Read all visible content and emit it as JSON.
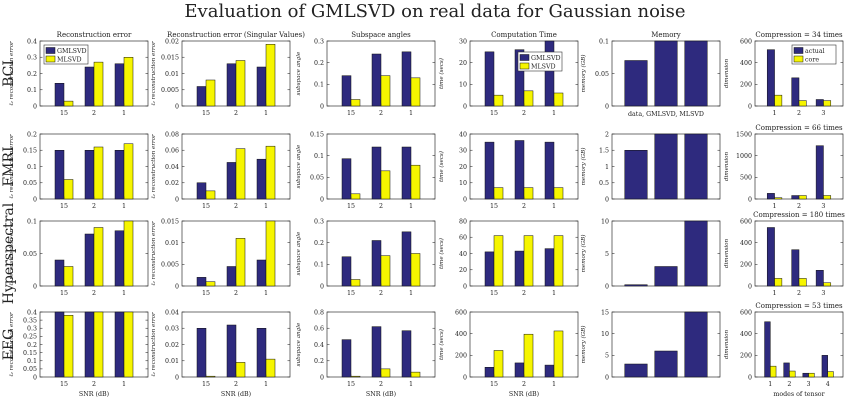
{
  "figure": {
    "title": "Evaluation of GMLSVD on real data for Gaussian noise",
    "colors": {
      "gmlsvd": "#2e2a7e",
      "mlsvd": "#f6f500",
      "actual": "#2e2a7e",
      "core": "#f6f500"
    }
  },
  "columns": [
    {
      "title": "Reconstruction error",
      "ylabel": "ℓ₂ reconstruction error",
      "xlabel": "SNR (dB)"
    },
    {
      "title": "Reconstruction error (Singular Values)",
      "ylabel": "ℓ₂ reconstruction error",
      "xlabel": "SNR (dB)"
    },
    {
      "title": "Subspace angles",
      "ylabel": "subspace angle",
      "xlabel": "SNR (dB)"
    },
    {
      "title": "Computation Time",
      "ylabel": "time (secs)",
      "xlabel": "SNR (dB)"
    },
    {
      "title": "Memory",
      "ylabel": "memory (GB)",
      "xlabel": ""
    },
    {
      "title": "",
      "ylabel": "dimension",
      "xlabel": "modes of tensor"
    }
  ],
  "rows": [
    "BCI",
    "FMRI",
    "Hyperspectral",
    "EEG"
  ],
  "legends": {
    "error": [
      "GMLSVD",
      "MLSVD"
    ],
    "time": [
      "GMLSVD",
      "MLSVD"
    ],
    "memory_note": "data, GMLSVD, MLSVD",
    "compression": [
      "actual",
      "core"
    ]
  },
  "chart_data": [
    {
      "id": "bci-err",
      "type": "bar",
      "categories": [
        "15",
        "2",
        "1"
      ],
      "ylim": [
        0,
        0.4
      ],
      "yticks": [
        0,
        0.1,
        0.2,
        0.3,
        0.4
      ],
      "series": [
        {
          "name": "GMLSVD",
          "values": [
            0.14,
            0.24,
            0.26
          ]
        },
        {
          "name": "MLSVD",
          "values": [
            0.03,
            0.27,
            0.3
          ]
        }
      ]
    },
    {
      "id": "bci-sv",
      "type": "bar",
      "categories": [
        "15",
        "2",
        "1"
      ],
      "ylim": [
        0,
        0.02
      ],
      "yticks": [
        0,
        0.005,
        0.01,
        0.015,
        0.02
      ],
      "series": [
        {
          "name": "GMLSVD",
          "values": [
            0.006,
            0.013,
            0.012
          ]
        },
        {
          "name": "MLSVD",
          "values": [
            0.008,
            0.014,
            0.019
          ]
        }
      ]
    },
    {
      "id": "bci-ang",
      "type": "bar",
      "categories": [
        "15",
        "2",
        "1"
      ],
      "ylim": [
        0,
        0.3
      ],
      "yticks": [
        0,
        0.1,
        0.2,
        0.3
      ],
      "series": [
        {
          "name": "GMLSVD",
          "values": [
            0.14,
            0.24,
            0.25
          ]
        },
        {
          "name": "MLSVD",
          "values": [
            0.03,
            0.14,
            0.13
          ]
        }
      ]
    },
    {
      "id": "bci-time",
      "type": "bar",
      "categories": [
        "15",
        "2",
        "1"
      ],
      "ylim": [
        0,
        30
      ],
      "yticks": [
        0,
        10,
        20,
        30
      ],
      "series": [
        {
          "name": "GMLSVD",
          "values": [
            25,
            26,
            30
          ]
        },
        {
          "name": "MLSVD",
          "values": [
            5,
            7,
            6
          ]
        }
      ]
    },
    {
      "id": "bci-mem",
      "type": "bar",
      "categories": [
        "data",
        "GMLSVD",
        "MLSVD"
      ],
      "ylim": [
        0,
        0.1
      ],
      "yticks": [
        0,
        0.05,
        0.1
      ],
      "series": [
        {
          "name": "memory",
          "values": [
            0.07,
            0.1,
            0.1
          ]
        }
      ]
    },
    {
      "id": "bci-comp",
      "type": "bar",
      "title": "Compression = 34 times",
      "categories": [
        "1",
        "2",
        "3"
      ],
      "ylim": [
        0,
        600
      ],
      "yticks": [
        0,
        200,
        400,
        600
      ],
      "series": [
        {
          "name": "actual",
          "values": [
            520,
            260,
            60
          ]
        },
        {
          "name": "core",
          "values": [
            100,
            50,
            50
          ]
        }
      ]
    },
    {
      "id": "fmri-err",
      "type": "bar",
      "categories": [
        "15",
        "2",
        "1"
      ],
      "ylim": [
        0,
        0.2
      ],
      "yticks": [
        0,
        0.05,
        0.1,
        0.15,
        0.2
      ],
      "series": [
        {
          "name": "GMLSVD",
          "values": [
            0.15,
            0.15,
            0.15
          ]
        },
        {
          "name": "MLSVD",
          "values": [
            0.06,
            0.16,
            0.17
          ]
        }
      ]
    },
    {
      "id": "fmri-sv",
      "type": "bar",
      "categories": [
        "15",
        "2",
        "1"
      ],
      "ylim": [
        0,
        0.08
      ],
      "yticks": [
        0,
        0.02,
        0.04,
        0.06,
        0.08
      ],
      "series": [
        {
          "name": "GMLSVD",
          "values": [
            0.02,
            0.045,
            0.049
          ]
        },
        {
          "name": "MLSVD",
          "values": [
            0.01,
            0.062,
            0.065
          ]
        }
      ]
    },
    {
      "id": "fmri-ang",
      "type": "bar",
      "categories": [
        "15",
        "2",
        "1"
      ],
      "ylim": [
        0,
        0.15
      ],
      "yticks": [
        0,
        0.05,
        0.1,
        0.15
      ],
      "series": [
        {
          "name": "GMLSVD",
          "values": [
            0.093,
            0.12,
            0.12
          ]
        },
        {
          "name": "MLSVD",
          "values": [
            0.012,
            0.065,
            0.078
          ]
        }
      ]
    },
    {
      "id": "fmri-time",
      "type": "bar",
      "categories": [
        "15",
        "2",
        "1"
      ],
      "ylim": [
        0,
        40
      ],
      "yticks": [
        0,
        10,
        20,
        30,
        40
      ],
      "series": [
        {
          "name": "GMLSVD",
          "values": [
            35,
            36,
            35
          ]
        },
        {
          "name": "MLSVD",
          "values": [
            7,
            7,
            7
          ]
        }
      ]
    },
    {
      "id": "fmri-mem",
      "type": "bar",
      "categories": [
        "data",
        "GMLSVD",
        "MLSVD"
      ],
      "ylim": [
        0,
        2
      ],
      "yticks": [
        0,
        0.5,
        1,
        1.5,
        2
      ],
      "series": [
        {
          "name": "memory",
          "values": [
            1.5,
            2,
            2
          ]
        }
      ]
    },
    {
      "id": "fmri-comp",
      "type": "bar",
      "title": "Compression = 66 times",
      "categories": [
        "1",
        "2",
        "3"
      ],
      "ylim": [
        0,
        1500
      ],
      "yticks": [
        0,
        500,
        1000,
        1500
      ],
      "series": [
        {
          "name": "actual",
          "values": [
            130,
            80,
            1230
          ]
        },
        {
          "name": "core",
          "values": [
            30,
            80,
            80
          ]
        }
      ]
    },
    {
      "id": "hyper-err",
      "type": "bar",
      "categories": [
        "15",
        "2",
        "1"
      ],
      "ylim": [
        0,
        0.1
      ],
      "yticks": [
        0,
        0.05,
        0.1
      ],
      "series": [
        {
          "name": "GMLSVD",
          "values": [
            0.04,
            0.08,
            0.085
          ]
        },
        {
          "name": "MLSVD",
          "values": [
            0.03,
            0.09,
            0.1
          ]
        }
      ]
    },
    {
      "id": "hyper-sv",
      "type": "bar",
      "categories": [
        "15",
        "2",
        "1"
      ],
      "ylim": [
        0,
        0.015
      ],
      "yticks": [
        0,
        0.005,
        0.01,
        0.015
      ],
      "series": [
        {
          "name": "GMLSVD",
          "values": [
            0.002,
            0.0045,
            0.006
          ]
        },
        {
          "name": "MLSVD",
          "values": [
            0.001,
            0.011,
            0.015
          ]
        }
      ]
    },
    {
      "id": "hyper-ang",
      "type": "bar",
      "categories": [
        "15",
        "2",
        "1"
      ],
      "ylim": [
        0,
        0.3
      ],
      "yticks": [
        0,
        0.1,
        0.2,
        0.3
      ],
      "series": [
        {
          "name": "GMLSVD",
          "values": [
            0.135,
            0.21,
            0.25
          ]
        },
        {
          "name": "MLSVD",
          "values": [
            0.03,
            0.14,
            0.15
          ]
        }
      ]
    },
    {
      "id": "hyper-time",
      "type": "bar",
      "categories": [
        "15",
        "2",
        "1"
      ],
      "ylim": [
        0,
        80
      ],
      "yticks": [
        0,
        20,
        40,
        60,
        80
      ],
      "series": [
        {
          "name": "GMLSVD",
          "values": [
            42,
            43,
            46
          ]
        },
        {
          "name": "MLSVD",
          "values": [
            62,
            62,
            62
          ]
        }
      ]
    },
    {
      "id": "hyper-mem",
      "type": "bar",
      "categories": [
        "data",
        "GMLSVD",
        "MLSVD"
      ],
      "ylim": [
        0,
        10
      ],
      "yticks": [
        0,
        5,
        10
      ],
      "series": [
        {
          "name": "memory",
          "values": [
            0.2,
            3,
            10
          ]
        }
      ]
    },
    {
      "id": "hyper-comp",
      "type": "bar",
      "title": "Compression = 180 times",
      "categories": [
        "1",
        "2",
        "3"
      ],
      "ylim": [
        0,
        600
      ],
      "yticks": [
        0,
        200,
        400,
        600
      ],
      "series": [
        {
          "name": "actual",
          "values": [
            540,
            335,
            145
          ]
        },
        {
          "name": "core",
          "values": [
            70,
            70,
            30
          ]
        }
      ]
    },
    {
      "id": "eeg-err",
      "type": "bar",
      "categories": [
        "15",
        "2",
        "1"
      ],
      "ylim": [
        0,
        0.4
      ],
      "yticks": [
        0,
        0.05,
        0.1,
        0.15,
        0.2,
        0.25,
        0.3,
        0.35,
        0.4
      ],
      "series": [
        {
          "name": "GMLSVD",
          "values": [
            0.4,
            0.4,
            0.4
          ]
        },
        {
          "name": "MLSVD",
          "values": [
            0.38,
            0.4,
            0.4
          ]
        }
      ]
    },
    {
      "id": "eeg-sv",
      "type": "bar",
      "categories": [
        "15",
        "2",
        "1"
      ],
      "ylim": [
        0,
        0.04
      ],
      "yticks": [
        0,
        0.01,
        0.02,
        0.03,
        0.04
      ],
      "series": [
        {
          "name": "GMLSVD",
          "values": [
            0.03,
            0.032,
            0.03
          ]
        },
        {
          "name": "MLSVD",
          "values": [
            0.0005,
            0.009,
            0.011
          ]
        }
      ]
    },
    {
      "id": "eeg-ang",
      "type": "bar",
      "categories": [
        "15",
        "2",
        "1"
      ],
      "ylim": [
        0,
        0.8
      ],
      "yticks": [
        0,
        0.2,
        0.4,
        0.6,
        0.8
      ],
      "series": [
        {
          "name": "GMLSVD",
          "values": [
            0.46,
            0.62,
            0.57
          ]
        },
        {
          "name": "MLSVD",
          "values": [
            0.01,
            0.1,
            0.06
          ]
        }
      ]
    },
    {
      "id": "eeg-time",
      "type": "bar",
      "categories": [
        "15",
        "2",
        "1"
      ],
      "ylim": [
        0,
        600
      ],
      "yticks": [
        0,
        200,
        400,
        600
      ],
      "series": [
        {
          "name": "GMLSVD",
          "values": [
            90,
            130,
            110
          ]
        },
        {
          "name": "MLSVD",
          "values": [
            245,
            395,
            425
          ]
        }
      ]
    },
    {
      "id": "eeg-mem",
      "type": "bar",
      "categories": [
        "data",
        "GMLSVD",
        "MLSVD"
      ],
      "ylim": [
        0,
        15
      ],
      "yticks": [
        0,
        5,
        10,
        15
      ],
      "series": [
        {
          "name": "memory",
          "values": [
            3,
            6,
            15
          ]
        }
      ]
    },
    {
      "id": "eeg-comp",
      "type": "bar",
      "title": "Compression = 53 times",
      "categories": [
        "1",
        "2",
        "3",
        "4"
      ],
      "ylim": [
        0,
        600
      ],
      "yticks": [
        0,
        200,
        400,
        600
      ],
      "series": [
        {
          "name": "actual",
          "values": [
            510,
            130,
            35,
            200
          ]
        },
        {
          "name": "core",
          "values": [
            100,
            55,
            35,
            50
          ]
        }
      ]
    }
  ]
}
